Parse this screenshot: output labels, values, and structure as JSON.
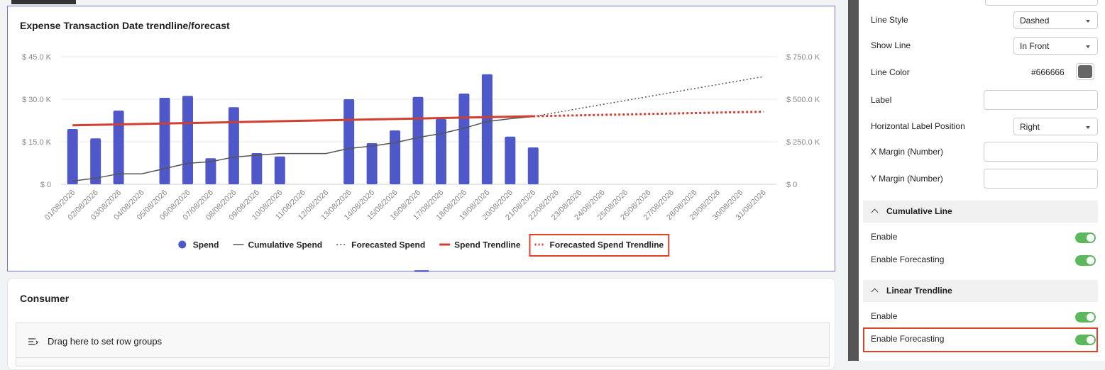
{
  "chart_data": {
    "type": "bar",
    "title": "Expense Transaction Date trendline/forecast",
    "categories": [
      "01/08/2026",
      "02/08/2026",
      "03/08/2026",
      "04/08/2026",
      "05/08/2026",
      "06/08/2026",
      "07/08/2026",
      "08/08/2026",
      "09/08/2026",
      "10/08/2026",
      "11/08/2026",
      "12/08/2026",
      "13/08/2026",
      "14/08/2026",
      "15/08/2026",
      "16/08/2026",
      "17/08/2026",
      "18/08/2026",
      "19/08/2026",
      "20/08/2026",
      "21/08/2026",
      "22/08/2026",
      "23/08/2026",
      "24/08/2026",
      "25/08/2026",
      "26/08/2026",
      "27/08/2026",
      "28/08/2026",
      "29/08/2026",
      "30/08/2026",
      "31/08/2026"
    ],
    "series": [
      {
        "name": "Spend",
        "type": "bar",
        "color": "#4e58c8",
        "values": [
          19.5,
          16.2,
          26,
          0,
          30.5,
          31.2,
          9.2,
          27.2,
          11,
          9.8,
          0,
          0,
          30,
          14.5,
          19,
          30.8,
          23,
          32,
          38.8,
          16.8,
          13,
          null,
          null,
          null,
          null,
          null,
          null,
          null,
          null,
          null,
          null
        ]
      },
      {
        "name": "Cumulative Spend",
        "type": "line",
        "style": "solid",
        "axis": "y2",
        "color": "#555555",
        "values": [
          19.5,
          35.7,
          61.7,
          61.7,
          92.2,
          123.4,
          132.6,
          159.8,
          170.8,
          180.6,
          180.6,
          180.6,
          210.6,
          225.1,
          244.1,
          274.9,
          297.9,
          329.9,
          368.7,
          385.5,
          398.5,
          null,
          null,
          null,
          null,
          null,
          null,
          null,
          null,
          null,
          null
        ]
      },
      {
        "name": "Forecasted Spend",
        "type": "line",
        "style": "dotted",
        "axis": "y2",
        "color": "#555555",
        "values": [
          null,
          null,
          null,
          null,
          null,
          null,
          null,
          null,
          null,
          null,
          null,
          null,
          null,
          null,
          null,
          null,
          null,
          null,
          null,
          null,
          398.5,
          422,
          445.4,
          468.9,
          492.3,
          515.8,
          539.2,
          562.7,
          586.1,
          609.6,
          633
        ]
      },
      {
        "name": "Spend Trendline",
        "type": "line",
        "style": "solid",
        "color": "#d04030",
        "values": [
          20.8,
          20.96,
          21.12,
          21.28,
          21.44,
          21.6,
          21.76,
          21.92,
          22.08,
          22.24,
          22.4,
          22.56,
          22.72,
          22.88,
          23.04,
          23.2,
          23.36,
          23.52,
          23.68,
          23.84,
          24,
          null,
          null,
          null,
          null,
          null,
          null,
          null,
          null,
          null,
          null
        ]
      },
      {
        "name": "Forecasted Spend Trendline",
        "type": "line",
        "style": "dotted",
        "color": "#d04030",
        "values": [
          null,
          null,
          null,
          null,
          null,
          null,
          null,
          null,
          null,
          null,
          null,
          null,
          null,
          null,
          null,
          null,
          null,
          null,
          null,
          null,
          24,
          24.16,
          24.32,
          24.48,
          24.64,
          24.8,
          24.96,
          25.12,
          25.28,
          25.44,
          25.6
        ]
      }
    ],
    "ylim": [
      0,
      45
    ],
    "yticks": [
      {
        "value": 0,
        "label": "$ 0"
      },
      {
        "value": 15,
        "label": "$ 15.0 K"
      },
      {
        "value": 30,
        "label": "$ 30.0 K"
      },
      {
        "value": 45,
        "label": "$ 45.0 K"
      }
    ],
    "y2lim": [
      0,
      750
    ],
    "y2ticks": [
      {
        "value": 0,
        "label": "$ 0"
      },
      {
        "value": 250,
        "label": "$ 250.0 K"
      },
      {
        "value": 500,
        "label": "$ 500.0 K"
      },
      {
        "value": 750,
        "label": "$ 750.0 K"
      }
    ],
    "grid": true,
    "legend": "bottom"
  },
  "consumer": {
    "title": "Consumer",
    "drop_zone": "Drag here to set row groups"
  },
  "panel": {
    "fields": [
      {
        "label": "Line Style",
        "value": "Dashed"
      },
      {
        "label": "Show Line",
        "value": "In Front"
      },
      {
        "label": "Line Color",
        "value": "#666666"
      },
      {
        "label": "Label"
      },
      {
        "label": "Horizontal Label Position",
        "value": "Right"
      },
      {
        "label": "X Margin (Number)"
      },
      {
        "label": "Y Margin (Number)"
      }
    ],
    "sections": [
      {
        "title": "Cumulative Line",
        "toggles": [
          "Enable",
          "Enable Forecasting"
        ]
      },
      {
        "title": "Linear Trendline",
        "toggles": [
          "Enable",
          "Enable Forecasting"
        ]
      }
    ]
  }
}
